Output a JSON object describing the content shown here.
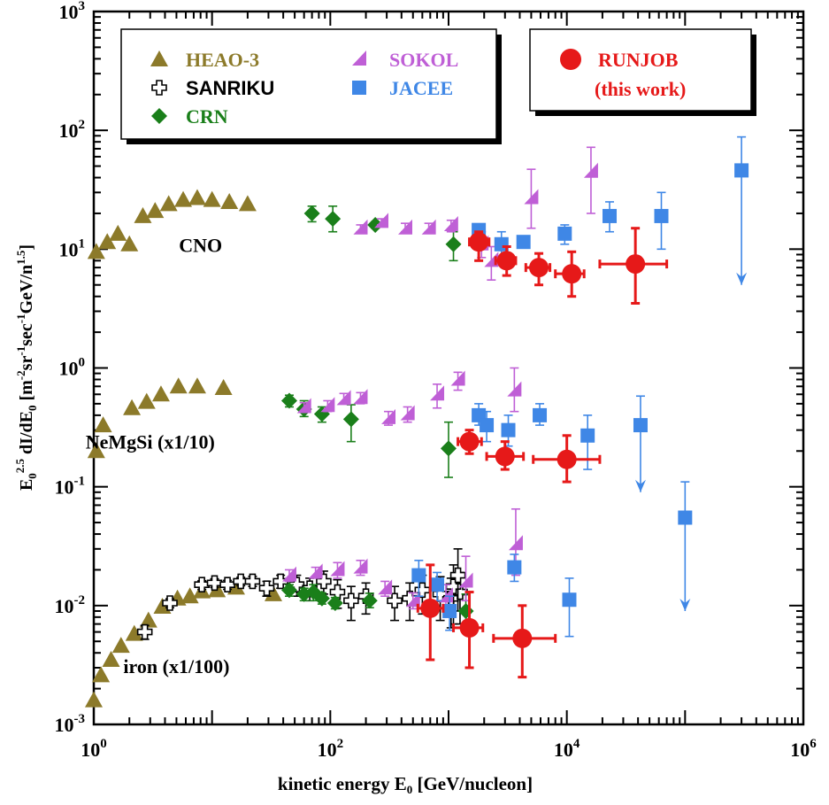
{
  "chart_data": {
    "type": "scatter",
    "xscale": "log",
    "yscale": "log",
    "xlim": [
      1,
      1000000
    ],
    "ylim": [
      0.001,
      1000
    ],
    "xlabel": "kinetic energy E0 [GeV/nucleon]",
    "ylabel": "E0^2.5 dI/dE0 [m^-2 sr^-1 sec^-1 GeV/n^1.5]",
    "x_ticks": [
      {
        "value": 1,
        "base": "10",
        "exp": "0"
      },
      {
        "value": 100,
        "base": "10",
        "exp": "2"
      },
      {
        "value": 10000,
        "base": "10",
        "exp": "4"
      },
      {
        "value": 1000000,
        "base": "10",
        "exp": "6"
      }
    ],
    "y_ticks": [
      {
        "value": 0.001,
        "base": "10",
        "exp": "-3"
      },
      {
        "value": 0.01,
        "base": "10",
        "exp": "-2"
      },
      {
        "value": 0.1,
        "base": "10",
        "exp": "-1"
      },
      {
        "value": 1,
        "base": "10",
        "exp": "0"
      },
      {
        "value": 10,
        "base": "10",
        "exp": "1"
      },
      {
        "value": 100,
        "base": "10",
        "exp": "2"
      },
      {
        "value": 1000,
        "base": "10",
        "exp": "3"
      }
    ],
    "group_labels": [
      {
        "text": "CNO",
        "x": 8,
        "y": 9.5
      },
      {
        "text": "NeMgSi (x1/10)",
        "x": 3,
        "y": 0.21
      },
      {
        "text": "iron (x1/100)",
        "x": 5,
        "y": 0.0027
      }
    ],
    "legend": {
      "box1": [
        "HEAO-3",
        "SANRIKU",
        "CRN",
        "SOKOL",
        "JACEE"
      ],
      "box2_line1": "RUNJOB",
      "box2_line2": "(this work)"
    },
    "series": [
      {
        "name": "HEAO-3",
        "marker": "triangle",
        "color": "#8c7a2a",
        "points": [
          [
            1.05,
            9.5
          ],
          [
            1.3,
            11.5
          ],
          [
            1.6,
            13.5
          ],
          [
            2.0,
            11
          ],
          [
            2.6,
            19
          ],
          [
            3.3,
            21
          ],
          [
            4.3,
            24
          ],
          [
            5.7,
            26
          ],
          [
            7.5,
            27
          ],
          [
            10,
            26
          ],
          [
            14,
            25
          ],
          [
            20,
            24
          ],
          [
            1.05,
            0.2
          ],
          [
            1.2,
            0.33
          ],
          [
            2.1,
            0.46
          ],
          [
            2.8,
            0.52
          ],
          [
            3.7,
            0.6
          ],
          [
            5.2,
            0.7
          ],
          [
            7.5,
            0.7
          ],
          [
            12.5,
            0.68
          ],
          [
            1.0,
            0.0016
          ],
          [
            1.15,
            0.0026
          ],
          [
            1.4,
            0.0035
          ],
          [
            1.7,
            0.0046
          ],
          [
            2.2,
            0.0058
          ],
          [
            2.9,
            0.0075
          ],
          [
            3.8,
            0.0098
          ],
          [
            5.1,
            0.0115
          ],
          [
            6.5,
            0.012
          ],
          [
            8.2,
            0.0132
          ],
          [
            11,
            0.0135
          ],
          [
            16,
            0.0142
          ],
          [
            33,
            0.0125
          ]
        ]
      },
      {
        "name": "SANRIKU",
        "marker": "cross",
        "color": "#000000",
        "points": [
          [
            2.7,
            0.006,
            0.0052,
            0.0068
          ],
          [
            4.4,
            0.0105,
            0.0096,
            0.0114
          ],
          [
            8.2,
            0.015,
            0.0137,
            0.0162
          ],
          [
            10.5,
            0.0155,
            0.0142,
            0.0168
          ],
          [
            13.5,
            0.015,
            0.0137,
            0.0163
          ],
          [
            17.5,
            0.016,
            0.0147,
            0.0173
          ],
          [
            22,
            0.016,
            0.0145,
            0.0176
          ],
          [
            29,
            0.014,
            0.012,
            0.016
          ],
          [
            38,
            0.016,
            0.014,
            0.018
          ],
          [
            52,
            0.015,
            0.012,
            0.018
          ],
          [
            67,
            0.014,
            0.011,
            0.017
          ],
          [
            88,
            0.016,
            0.0125,
            0.0195
          ],
          [
            115,
            0.013,
            0.0095,
            0.0165
          ],
          [
            150,
            0.011,
            0.0075,
            0.0145
          ],
          [
            200,
            0.012,
            0.0085,
            0.0155
          ],
          [
            350,
            0.011,
            0.0075,
            0.0145
          ],
          [
            470,
            0.0115,
            0.0075,
            0.0155
          ],
          [
            600,
            0.0135,
            0.0085,
            0.018
          ],
          [
            850,
            0.0125,
            0.0075,
            0.0175
          ],
          [
            1050,
            0.0115,
            0.0065,
            0.017
          ],
          [
            1250,
            0.013,
            0.007,
            0.019
          ],
          [
            1100,
            0.0145,
            0.007,
            0.022
          ],
          [
            1200,
            0.018,
            0.009,
            0.03
          ]
        ]
      },
      {
        "name": "CRN",
        "marker": "diamond",
        "color": "#1a7f1a",
        "points": [
          [
            70,
            20,
            17,
            23
          ],
          [
            105,
            18,
            14,
            23
          ],
          [
            240,
            16,
            15,
            17
          ],
          [
            1100,
            11,
            8,
            14
          ],
          [
            45,
            0.53,
            0.47,
            0.59
          ],
          [
            60,
            0.45,
            0.39,
            0.53
          ],
          [
            85,
            0.41,
            0.35,
            0.47
          ],
          [
            150,
            0.37,
            0.24,
            0.49
          ],
          [
            1000,
            0.21,
            0.12,
            0.35
          ],
          [
            45,
            0.0135,
            0.012,
            0.015
          ],
          [
            60,
            0.0125,
            0.011,
            0.014
          ],
          [
            72,
            0.013,
            0.011,
            0.015
          ],
          [
            85,
            0.0115,
            0.0103,
            0.0128
          ],
          [
            110,
            0.0105,
            0.0094,
            0.0117
          ],
          [
            215,
            0.011,
            0.0096,
            0.0127
          ],
          [
            1400,
            0.009,
            0.006,
            0.0125
          ]
        ]
      },
      {
        "name": "SOKOL",
        "marker": "half-triangle",
        "color": "#bf5fd6",
        "points": [
          [
            180,
            15,
            14,
            16
          ],
          [
            270,
            17,
            16,
            18
          ],
          [
            430,
            15,
            14,
            16.5
          ],
          [
            680,
            15,
            14,
            16.5
          ],
          [
            1050,
            16,
            14,
            17.5
          ],
          [
            1900,
            11,
            8.5,
            14
          ],
          [
            2300,
            8,
            5.5,
            10.5
          ],
          [
            5000,
            27,
            15,
            47
          ],
          [
            16000,
            45,
            20,
            72
          ],
          [
            60,
            0.47,
            0.43,
            0.51
          ],
          [
            95,
            0.48,
            0.43,
            0.53
          ],
          [
            130,
            0.55,
            0.5,
            0.61
          ],
          [
            180,
            0.56,
            0.5,
            0.62
          ],
          [
            310,
            0.38,
            0.33,
            0.43
          ],
          [
            450,
            0.41,
            0.35,
            0.47
          ],
          [
            800,
            0.6,
            0.46,
            0.73
          ],
          [
            1200,
            0.8,
            0.65,
            0.92
          ],
          [
            3600,
            0.65,
            0.43,
            1.0
          ],
          [
            45,
            0.018,
            0.016,
            0.02
          ],
          [
            75,
            0.019,
            0.017,
            0.021
          ],
          [
            115,
            0.02,
            0.017,
            0.023
          ],
          [
            180,
            0.021,
            0.018,
            0.024
          ],
          [
            290,
            0.014,
            0.012,
            0.016
          ],
          [
            500,
            0.011,
            0.0094,
            0.0128
          ],
          [
            950,
            0.012,
            0.0095,
            0.015
          ],
          [
            1400,
            0.016,
            0.011,
            0.026
          ],
          [
            3700,
            0.033,
            0.018,
            0.065
          ]
        ]
      },
      {
        "name": "JACEE",
        "marker": "square",
        "color": "#3f87e6",
        "points": [
          [
            1800,
            14.5,
            13,
            16
          ],
          [
            2800,
            11,
            8,
            14
          ],
          [
            4300,
            11.5,
            10.5,
            12.5
          ],
          [
            9600,
            13.5,
            11,
            16
          ],
          [
            23000,
            19,
            14,
            25
          ],
          [
            63000,
            19,
            10,
            30
          ],
          [
            300000,
            46,
            5,
            88,
            "upper"
          ],
          [
            1800,
            0.4,
            0.33,
            0.5
          ],
          [
            2100,
            0.33,
            0.24,
            0.43
          ],
          [
            3200,
            0.3,
            0.22,
            0.4
          ],
          [
            5900,
            0.4,
            0.33,
            0.5
          ],
          [
            15000,
            0.27,
            0.14,
            0.4
          ],
          [
            42000,
            0.33,
            0.09,
            0.58,
            "upper"
          ],
          [
            100000,
            0.055,
            0.009,
            0.11,
            "upper"
          ],
          [
            560,
            0.018,
            0.012,
            0.024
          ],
          [
            800,
            0.015,
            0.011,
            0.019
          ],
          [
            1020,
            0.009,
            0.0062,
            0.012
          ],
          [
            3600,
            0.021,
            0.016,
            0.027
          ],
          [
            10500,
            0.0112,
            0.0055,
            0.017
          ]
        ]
      },
      {
        "name": "RUNJOB",
        "marker": "circle",
        "color": "#e61919",
        "points": [
          [
            1800,
            11.5,
            8,
            14,
            1500,
            2200
          ],
          [
            3100,
            8,
            6,
            10.5,
            2500,
            3700
          ],
          [
            5800,
            7,
            5,
            9.2,
            4500,
            7200
          ],
          [
            11000,
            6.2,
            4,
            9.5,
            8000,
            14000
          ],
          [
            38000,
            7.5,
            3.5,
            15,
            19000,
            70000
          ],
          [
            1500,
            0.24,
            0.19,
            0.3,
            1200,
            1900
          ],
          [
            3000,
            0.18,
            0.14,
            0.24,
            2100,
            4300
          ],
          [
            10000,
            0.17,
            0.11,
            0.27,
            5200,
            19000
          ],
          [
            700,
            0.0095,
            0.0035,
            0.022,
            550,
            900
          ],
          [
            1500,
            0.0065,
            0.003,
            0.013,
            1100,
            1950
          ],
          [
            4200,
            0.0053,
            0.0025,
            0.01,
            2400,
            8000
          ]
        ]
      }
    ]
  }
}
